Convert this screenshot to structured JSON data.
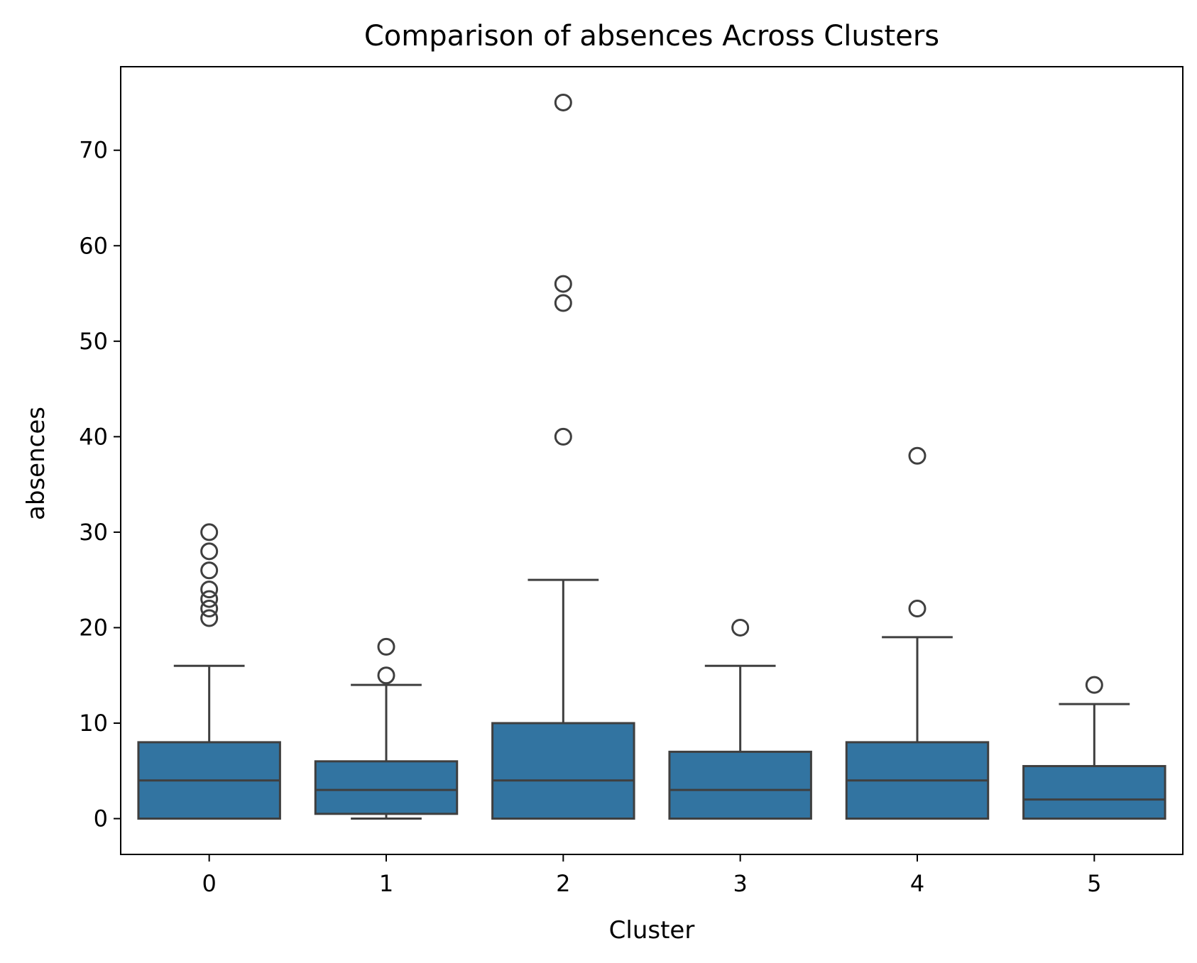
{
  "chart_data": {
    "type": "box",
    "title": "Comparison of absences Across Clusters",
    "xlabel": "Cluster",
    "ylabel": "absences",
    "categories": [
      "0",
      "1",
      "2",
      "3",
      "4",
      "5"
    ],
    "ylim": [
      -3.75,
      78.75
    ],
    "yticks": [
      0,
      10,
      20,
      30,
      40,
      50,
      60,
      70
    ],
    "grid": false,
    "legend": "none",
    "box_color": "#3274a1",
    "line_color": "#3f3f3f",
    "series": [
      {
        "category": "0",
        "whisker_low": 0,
        "q1": 0,
        "median": 4,
        "q3": 8,
        "whisker_high": 16,
        "outliers": [
          21,
          22,
          23,
          24,
          26,
          28,
          30
        ]
      },
      {
        "category": "1",
        "whisker_low": 0,
        "q1": 0.5,
        "median": 3,
        "q3": 6,
        "whisker_high": 14,
        "outliers": [
          15,
          18
        ]
      },
      {
        "category": "2",
        "whisker_low": 0,
        "q1": 0,
        "median": 4,
        "q3": 10,
        "whisker_high": 25,
        "outliers": [
          40,
          54,
          56,
          75
        ]
      },
      {
        "category": "3",
        "whisker_low": 0,
        "q1": 0,
        "median": 3,
        "q3": 7,
        "whisker_high": 16,
        "outliers": [
          20
        ]
      },
      {
        "category": "4",
        "whisker_low": 0,
        "q1": 0,
        "median": 4,
        "q3": 8,
        "whisker_high": 19,
        "outliers": [
          22,
          38
        ]
      },
      {
        "category": "5",
        "whisker_low": 0,
        "q1": 0,
        "median": 2,
        "q3": 5.5,
        "whisker_high": 12,
        "outliers": [
          14
        ]
      }
    ]
  }
}
